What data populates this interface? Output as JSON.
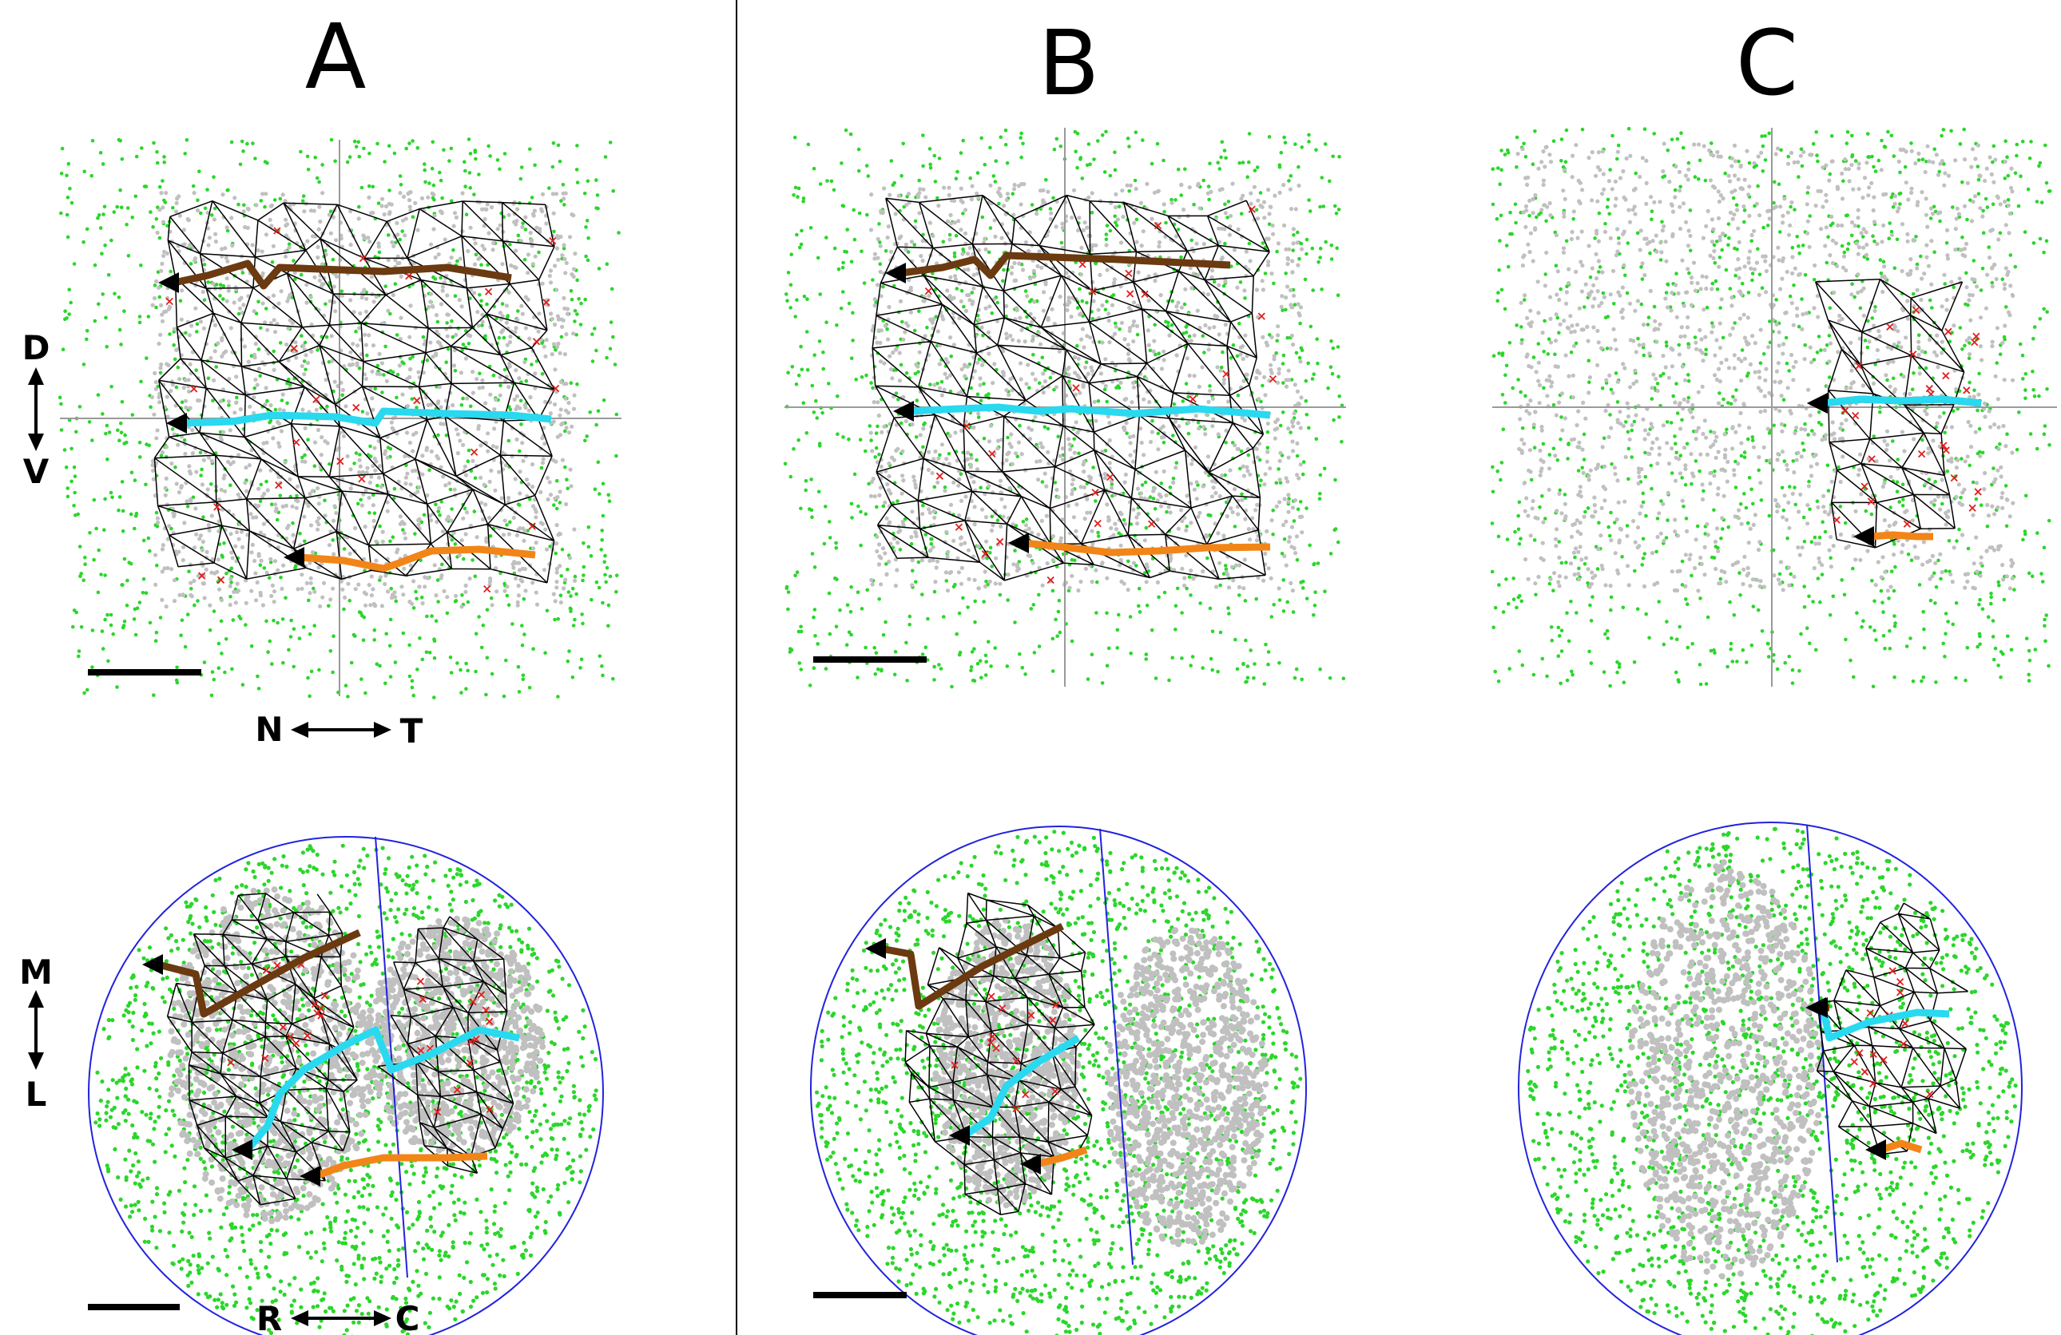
{
  "panels": [
    {
      "label": "A"
    },
    {
      "label": "B"
    },
    {
      "label": "C"
    }
  ],
  "axes": {
    "retina": {
      "dorsal": "D",
      "ventral": "V",
      "nasal": "N",
      "temporal": "T"
    },
    "colliculus": {
      "medial": "M",
      "lateral": "L",
      "rostral": "R",
      "caudal": "C"
    }
  },
  "legend_colors": {
    "retina_points": "#2bd62b",
    "mapped_points": "#c0c0c0",
    "crosses": "#e02020",
    "mesh": "#000000",
    "dorsal_line": "#6b3a10",
    "middle_line": "#29d9f0",
    "ventral_line": "#f28518",
    "outline": "#2222dd",
    "axis": "#8a8a8a"
  }
}
